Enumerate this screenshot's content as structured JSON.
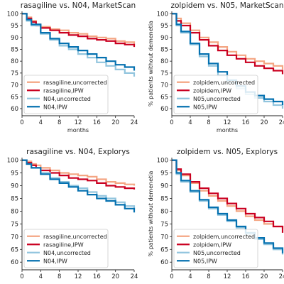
{
  "figure": {
    "background": "#ffffff"
  },
  "chart_data": [
    {
      "type": "line",
      "title": "rasagiline vs. N04, MarketScan",
      "xlabel": "months",
      "ylabel": "",
      "xlim": [
        0,
        24
      ],
      "ylim": [
        57,
        101
      ],
      "xticks": [
        0,
        4,
        8,
        12,
        16,
        20,
        24
      ],
      "yticks": [
        60,
        65,
        70,
        75,
        80,
        85,
        90,
        95,
        100
      ],
      "grid": false,
      "legend": "lower-left",
      "series": [
        {
          "name": "rasagiline,uncorrected",
          "color": "#f4a582",
          "x": [
            0,
            1,
            2,
            3,
            4,
            6,
            8,
            10,
            12,
            14,
            16,
            18,
            20,
            22,
            24
          ],
          "y": [
            100,
            98.5,
            97,
            95.5,
            94.5,
            93.5,
            93,
            92,
            91.5,
            90.5,
            90,
            89.5,
            88.5,
            88,
            87
          ]
        },
        {
          "name": "rasagiline,IPW",
          "color": "#ca0020",
          "x": [
            0,
            1,
            2,
            3,
            4,
            6,
            8,
            10,
            12,
            14,
            16,
            18,
            20,
            22,
            24
          ],
          "y": [
            100,
            98,
            96.5,
            95,
            94,
            93,
            92,
            91,
            90.5,
            89.5,
            89,
            88.5,
            87.5,
            87,
            86
          ]
        },
        {
          "name": "N04,uncorrected",
          "color": "#92c5de",
          "x": [
            0,
            1,
            2,
            4,
            6,
            8,
            10,
            12,
            14,
            16,
            18,
            20,
            22,
            24
          ],
          "y": [
            100,
            97,
            95,
            91.5,
            89,
            86.5,
            85,
            83,
            81.5,
            79.5,
            78,
            76.5,
            75,
            73.5
          ]
        },
        {
          "name": "N04,IPW",
          "color": "#0571b0",
          "x": [
            0,
            1,
            2,
            4,
            6,
            8,
            10,
            12,
            14,
            16,
            18,
            20,
            22,
            24
          ],
          "y": [
            100,
            97.5,
            95.5,
            92,
            89.5,
            87.5,
            86,
            84.5,
            83,
            81.5,
            80,
            78.5,
            77.5,
            76
          ]
        }
      ]
    },
    {
      "type": "line",
      "title": "zolpidem vs. N05, MarketScan",
      "xlabel": "months",
      "ylabel": "% patients without demenetia",
      "xlim": [
        0,
        24
      ],
      "ylim": [
        57,
        101
      ],
      "xticks": [
        0,
        4,
        8,
        12,
        16,
        20,
        24
      ],
      "yticks": [
        60,
        65,
        70,
        75,
        80,
        85,
        90,
        95,
        100
      ],
      "grid": false,
      "legend": "lower-left",
      "series": [
        {
          "name": "zolpidem,uncorrected",
          "color": "#f4a582",
          "x": [
            0,
            1,
            2,
            4,
            6,
            8,
            10,
            12,
            14,
            16,
            18,
            20,
            22,
            24
          ],
          "y": [
            100,
            98,
            96,
            93,
            90,
            88,
            86,
            84,
            82.5,
            81,
            80,
            79,
            78,
            76.5
          ]
        },
        {
          "name": "zolpidem,IPW",
          "color": "#ca0020",
          "x": [
            0,
            1,
            2,
            4,
            6,
            8,
            10,
            12,
            14,
            16,
            18,
            20,
            22,
            24
          ],
          "y": [
            100,
            97,
            95,
            92,
            89,
            86.5,
            84.5,
            82.5,
            81,
            79.5,
            78,
            77,
            76,
            74.5
          ]
        },
        {
          "name": "N05,uncorrected",
          "color": "#92c5de",
          "x": [
            0,
            1,
            2,
            4,
            6,
            8,
            10,
            12,
            14,
            16,
            18,
            20,
            22,
            24
          ],
          "y": [
            100,
            95,
            92,
            87,
            82,
            78,
            74,
            71,
            68.5,
            66,
            64.5,
            63,
            61.5,
            60
          ]
        },
        {
          "name": "N05,IPW",
          "color": "#0571b0",
          "x": [
            0,
            1,
            2,
            4,
            6,
            8,
            10,
            12,
            14,
            16,
            18,
            20,
            22,
            24
          ],
          "y": [
            100,
            95.5,
            92.5,
            87.5,
            83,
            79,
            75.5,
            72,
            69.5,
            67,
            65.5,
            64,
            63,
            61.5
          ]
        }
      ]
    },
    {
      "type": "line",
      "title": "rasagiline vs. N04, Explorys",
      "xlabel": "",
      "ylabel": "",
      "xlim": [
        0,
        24
      ],
      "ylim": [
        57,
        101
      ],
      "xticks": [
        0,
        4,
        8,
        12,
        16,
        20,
        24
      ],
      "yticks": [
        60,
        65,
        70,
        75,
        80,
        85,
        90,
        95,
        100
      ],
      "grid": false,
      "legend": "lower-left",
      "series": [
        {
          "name": "rasagiline,uncorrected",
          "color": "#f4a582",
          "x": [
            0,
            1,
            2,
            3,
            4,
            6,
            8,
            10,
            12,
            14,
            16,
            18,
            20,
            22,
            24
          ],
          "y": [
            100,
            99.5,
            98.5,
            98,
            97,
            96,
            95,
            94.5,
            94,
            93.5,
            92.5,
            91.5,
            91,
            90.5,
            90
          ]
        },
        {
          "name": "rasagiline,IPW",
          "color": "#ca0020",
          "x": [
            0,
            1,
            2,
            3,
            4,
            6,
            8,
            10,
            12,
            14,
            16,
            18,
            20,
            22,
            24
          ],
          "y": [
            100,
            99,
            98,
            97,
            96,
            95,
            94,
            93,
            92.5,
            92,
            91,
            90,
            89.5,
            89,
            88.5
          ]
        },
        {
          "name": "N04,uncorrected",
          "color": "#92c5de",
          "x": [
            0,
            1,
            2,
            4,
            6,
            8,
            10,
            12,
            14,
            16,
            18,
            20,
            22,
            24
          ],
          "y": [
            100,
            98.5,
            97,
            95,
            93,
            91.5,
            90,
            89,
            87.5,
            86,
            85,
            83.5,
            82,
            80.5
          ]
        },
        {
          "name": "N04,IPW",
          "color": "#0571b0",
          "x": [
            0,
            1,
            2,
            4,
            6,
            8,
            10,
            12,
            14,
            16,
            18,
            20,
            22,
            24
          ],
          "y": [
            100,
            98.5,
            97,
            94.5,
            92.5,
            91,
            89.5,
            88,
            86.5,
            85,
            84,
            82.5,
            81,
            79.5
          ]
        }
      ]
    },
    {
      "type": "line",
      "title": "zolpidem vs. N05, Explorys",
      "xlabel": "",
      "ylabel": "% patients without demenetia",
      "xlim": [
        0,
        24
      ],
      "ylim": [
        57,
        101
      ],
      "xticks": [
        0,
        4,
        8,
        12,
        16,
        20,
        24
      ],
      "yticks": [
        60,
        65,
        70,
        75,
        80,
        85,
        90,
        95,
        100
      ],
      "grid": false,
      "legend": "lower-left",
      "series": [
        {
          "name": "zolpidem,uncorrected",
          "color": "#f4a582",
          "x": [
            0,
            1,
            2,
            4,
            6,
            8,
            10,
            12,
            14,
            16,
            18,
            20,
            22,
            24
          ],
          "y": [
            100,
            96,
            94,
            91,
            88,
            86,
            84,
            82,
            80,
            78,
            76.5,
            75,
            74,
            73
          ]
        },
        {
          "name": "zolpidem,IPW",
          "color": "#ca0020",
          "x": [
            0,
            1,
            2,
            4,
            6,
            8,
            10,
            12,
            14,
            16,
            18,
            20,
            22,
            24
          ],
          "y": [
            100,
            96.5,
            94.5,
            91.5,
            89,
            87,
            85,
            83,
            81,
            79,
            77.5,
            76,
            74,
            71.5
          ]
        },
        {
          "name": "N05,uncorrected",
          "color": "#92c5de",
          "x": [
            0,
            1,
            2,
            4,
            6,
            8,
            10,
            12,
            14,
            16,
            18,
            20,
            22,
            24
          ],
          "y": [
            100,
            94.5,
            91.5,
            87.5,
            84,
            81,
            78.5,
            76,
            73.5,
            71,
            69,
            67,
            65,
            63
          ]
        },
        {
          "name": "N05,IPW",
          "color": "#0571b0",
          "x": [
            0,
            1,
            2,
            4,
            6,
            8,
            10,
            12,
            14,
            16,
            18,
            20,
            22,
            24
          ],
          "y": [
            100,
            95,
            92,
            88,
            84.5,
            81.5,
            79,
            76.5,
            74,
            71.5,
            69.5,
            67.5,
            65.5,
            63.5
          ]
        }
      ]
    }
  ]
}
